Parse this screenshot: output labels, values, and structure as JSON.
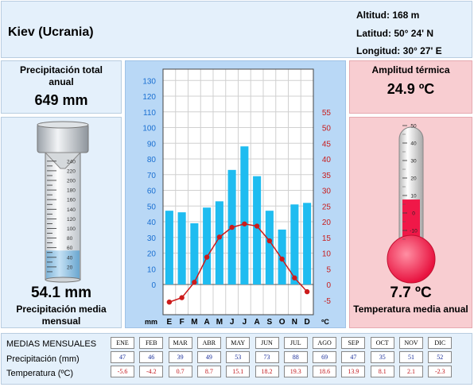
{
  "header": {
    "city": "Kiev (Ucrania)",
    "altitude": "Altitud: 168 m",
    "latitude": "Latitud: 50° 24' N",
    "longitude": "Longitud:  30° 27' E"
  },
  "precip_total": {
    "label": "Precipitación total anual",
    "value": "649 mm"
  },
  "precip_monthly": {
    "label": "Precipitación media mensual",
    "value": "54.1 mm",
    "gauge_value": 54.1,
    "gauge_ticks": [
      "240",
      "220",
      "200",
      "180",
      "160",
      "140",
      "120",
      "100",
      "80",
      "60",
      "40",
      "20"
    ]
  },
  "amplitude": {
    "label": "Amplitud térmica",
    "value": "24.9 ºC"
  },
  "temp_annual": {
    "label": "Temperatura media anual",
    "value": "7.7 ºC",
    "gauge_value": 7.7,
    "gauge_ticks": [
      "50",
      "40",
      "30",
      "20",
      "10",
      "0",
      "-10"
    ]
  },
  "colors": {
    "bars": "#1fbcf0",
    "line": "#cc1b1b",
    "panel_blue": "#e4f0fb",
    "panel_pink": "#f8cdd1",
    "chart_bg": "#b9d8f6"
  },
  "chart_data": {
    "type": "bar",
    "categories": [
      "E",
      "F",
      "M",
      "A",
      "M",
      "J",
      "J",
      "A",
      "S",
      "O",
      "N",
      "D"
    ],
    "series": [
      {
        "name": "Precipitación",
        "type": "bar",
        "axis": "left",
        "values": [
          47,
          46,
          39,
          49,
          53,
          73,
          88,
          69,
          47,
          35,
          51,
          52
        ]
      },
      {
        "name": "Temperatura",
        "type": "line",
        "axis": "right",
        "values": [
          -5.6,
          -4.2,
          0.7,
          8.7,
          15.1,
          18.2,
          19.3,
          18.6,
          13.9,
          8.1,
          2.1,
          -2.3
        ]
      }
    ],
    "xlabel_left": "mm",
    "xlabel_right": "ºC",
    "y_left": {
      "range": [
        -20,
        135
      ],
      "ticks": [
        "0",
        "10",
        "20",
        "30",
        "40",
        "50",
        "60",
        "70",
        "80",
        "90",
        "100",
        "110",
        "120",
        "130"
      ]
    },
    "y_right": {
      "range": [
        -10,
        67.5
      ],
      "ticks": [
        "-5",
        "0",
        "5",
        "10",
        "15",
        "20",
        "25",
        "30",
        "35",
        "40",
        "45",
        "50",
        "55"
      ]
    },
    "grid": true
  },
  "table": {
    "title": "MEDIAS MENSUALES",
    "row_precip_label": "Precipitación (mm)",
    "row_temp_label": "Temperatura (ºC)",
    "months": [
      "ENE",
      "FEB",
      "MAR",
      "ABR",
      "MAY",
      "JUN",
      "JUL",
      "AGO",
      "SEP",
      "OCT",
      "NOV",
      "DIC"
    ],
    "precip": [
      "47",
      "46",
      "39",
      "49",
      "53",
      "73",
      "88",
      "69",
      "47",
      "35",
      "51",
      "52"
    ],
    "temp": [
      "-5.6",
      "-4.2",
      "0.7",
      "8.7",
      "15.1",
      "18.2",
      "19.3",
      "18.6",
      "13.9",
      "8.1",
      "2.1",
      "-2.3"
    ]
  }
}
